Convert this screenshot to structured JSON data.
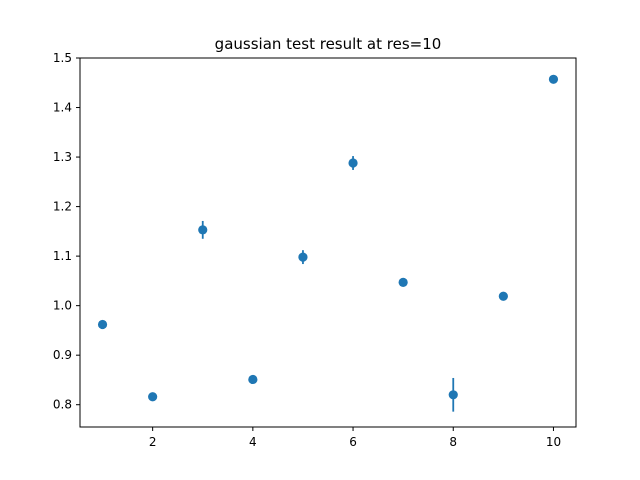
{
  "chart_data": {
    "type": "scatter",
    "title": "gaussian test result at res=10",
    "xlabel": "",
    "ylabel": "",
    "xlim": [
      0.55,
      10.45
    ],
    "ylim": [
      0.755,
      1.5
    ],
    "xticks": [
      2,
      4,
      6,
      8,
      10
    ],
    "xtick_labels": [
      "2",
      "4",
      "6",
      "8",
      "10"
    ],
    "yticks": [
      0.8,
      0.9,
      1.0,
      1.1,
      1.2,
      1.3,
      1.4,
      1.5
    ],
    "ytick_labels": [
      "0.8",
      "0.9",
      "1.0",
      "1.1",
      "1.2",
      "1.3",
      "1.4",
      "1.5"
    ],
    "grid": false,
    "legend": "none",
    "series": [
      {
        "color": "#1f77b4",
        "marker": "circle",
        "x": [
          1,
          2,
          3,
          4,
          5,
          6,
          7,
          8,
          9,
          10
        ],
        "y": [
          0.962,
          0.816,
          1.153,
          0.851,
          1.098,
          1.288,
          1.047,
          0.82,
          1.019,
          1.457
        ],
        "yerr": [
          0.004,
          0.004,
          0.018,
          0.007,
          0.014,
          0.014,
          0.004,
          0.034,
          0.004,
          0.005
        ]
      }
    ]
  }
}
